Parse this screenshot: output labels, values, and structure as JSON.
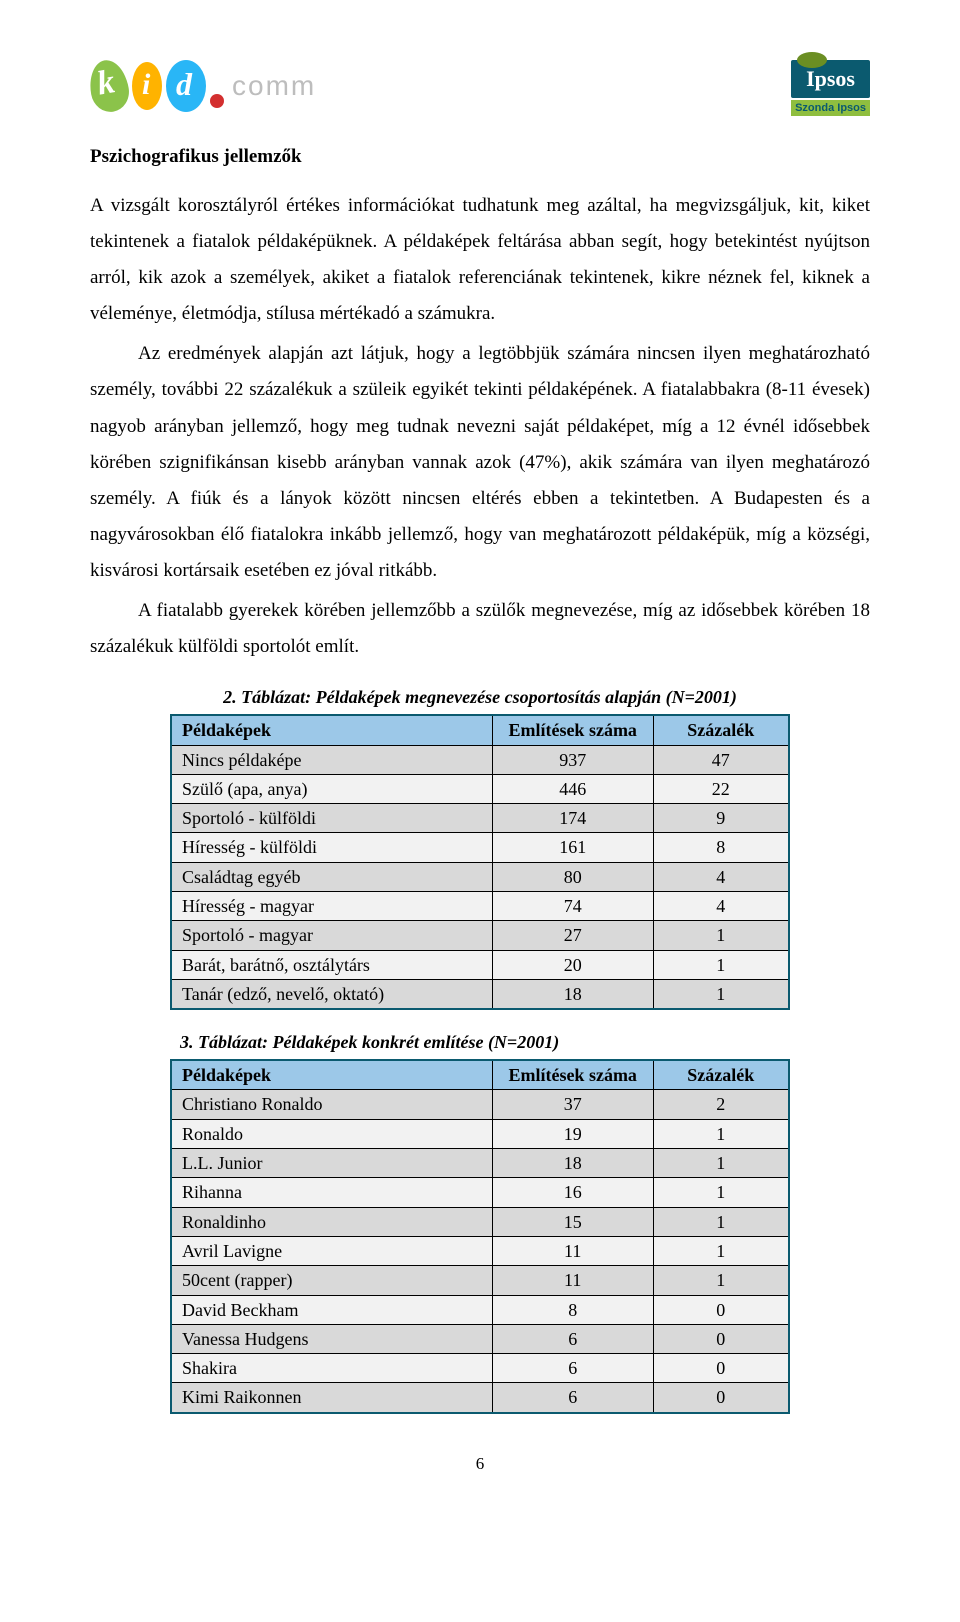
{
  "header": {
    "logo_left_text": "comm",
    "logo_right_brand": "Ipsos",
    "logo_right_sub": "Szonda Ipsos"
  },
  "section_title": "Pszichografikus jellemzők",
  "paragraphs": {
    "p1": "A vizsgált korosztályról értékes információkat tudhatunk meg azáltal, ha megvizsgáljuk, kit, kiket tekintenek a fiatalok példaképüknek. A példaképek feltárása abban segít, hogy betekintést nyújtson arról, kik azok a személyek, akiket a fiatalok referenciának tekintenek, kikre néznek fel, kiknek a véleménye, életmódja, stílusa mértékadó a számukra.",
    "p2": "Az eredmények alapján azt látjuk, hogy a legtöbbjük számára nincsen ilyen meghatározható személy, további 22 százalékuk a szüleik egyikét tekinti példaképének. A fiatalabbakra (8-11 évesek) nagyob arányban jellemző, hogy meg tudnak nevezni saját példaképet, míg a 12 évnél idősebbek körében szignifikánsan kisebb arányban vannak azok (47%), akik számára van ilyen meghatározó személy. A fiúk és a lányok között nincsen eltérés ebben a tekintetben. A Budapesten és a nagyvárosokban élő fiatalokra inkább jellemző, hogy van meghatározott példaképük, míg a községi, kisvárosi kortársaik esetében ez jóval ritkább.",
    "p3": "A fiatalabb gyerekek körében jellemzőbb a szülők megnevezése, míg az idősebbek körében 18 százalékuk külföldi sportolót említ."
  },
  "table2": {
    "caption": "2. Táblázat: Példaképek megnevezése csoportosítás alapján (N=2001)",
    "headers": [
      "Példaképek",
      "Említések száma",
      "Százalék"
    ],
    "rows": [
      {
        "label": "Nincs példaképe",
        "count": "937",
        "pct": "47"
      },
      {
        "label": "Szülő (apa, anya)",
        "count": "446",
        "pct": "22"
      },
      {
        "label": "Sportoló - külföldi",
        "count": "174",
        "pct": "9"
      },
      {
        "label": "Híresség - külföldi",
        "count": "161",
        "pct": "8"
      },
      {
        "label": "Családtag egyéb",
        "count": "80",
        "pct": "4"
      },
      {
        "label": "Híresség - magyar",
        "count": "74",
        "pct": "4"
      },
      {
        "label": "Sportoló - magyar",
        "count": "27",
        "pct": "1"
      },
      {
        "label": "Barát, barátnő, osztálytárs",
        "count": "20",
        "pct": "1"
      },
      {
        "label": "Tanár (edző, nevelő, oktató)",
        "count": "18",
        "pct": "1"
      }
    ]
  },
  "table3": {
    "caption": "3. Táblázat: Példaképek konkrét említése (N=2001)",
    "headers": [
      "Példaképek",
      "Említések száma",
      "Százalék"
    ],
    "rows": [
      {
        "label": "Christiano Ronaldo",
        "count": "37",
        "pct": "2"
      },
      {
        "label": "Ronaldo",
        "count": "19",
        "pct": "1"
      },
      {
        "label": "L.L. Junior",
        "count": "18",
        "pct": "1"
      },
      {
        "label": "Rihanna",
        "count": "16",
        "pct": "1"
      },
      {
        "label": "Ronaldinho",
        "count": "15",
        "pct": "1"
      },
      {
        "label": "Avril Lavigne",
        "count": "11",
        "pct": "1"
      },
      {
        "label": "50cent (rapper)",
        "count": "11",
        "pct": "1"
      },
      {
        "label": "David Beckham",
        "count": "8",
        "pct": "0"
      },
      {
        "label": "Vanessa Hudgens",
        "count": "6",
        "pct": "0"
      },
      {
        "label": "Shakira",
        "count": "6",
        "pct": "0"
      },
      {
        "label": "Kimi Raikonnen",
        "count": "6",
        "pct": "0"
      }
    ]
  },
  "page_number": "6",
  "style": {
    "th_bg": "#9cc8e8",
    "row_odd_bg": "#d9d9d9",
    "row_even_bg": "#f2f2f2",
    "outer_border": "#0b5a6f"
  }
}
